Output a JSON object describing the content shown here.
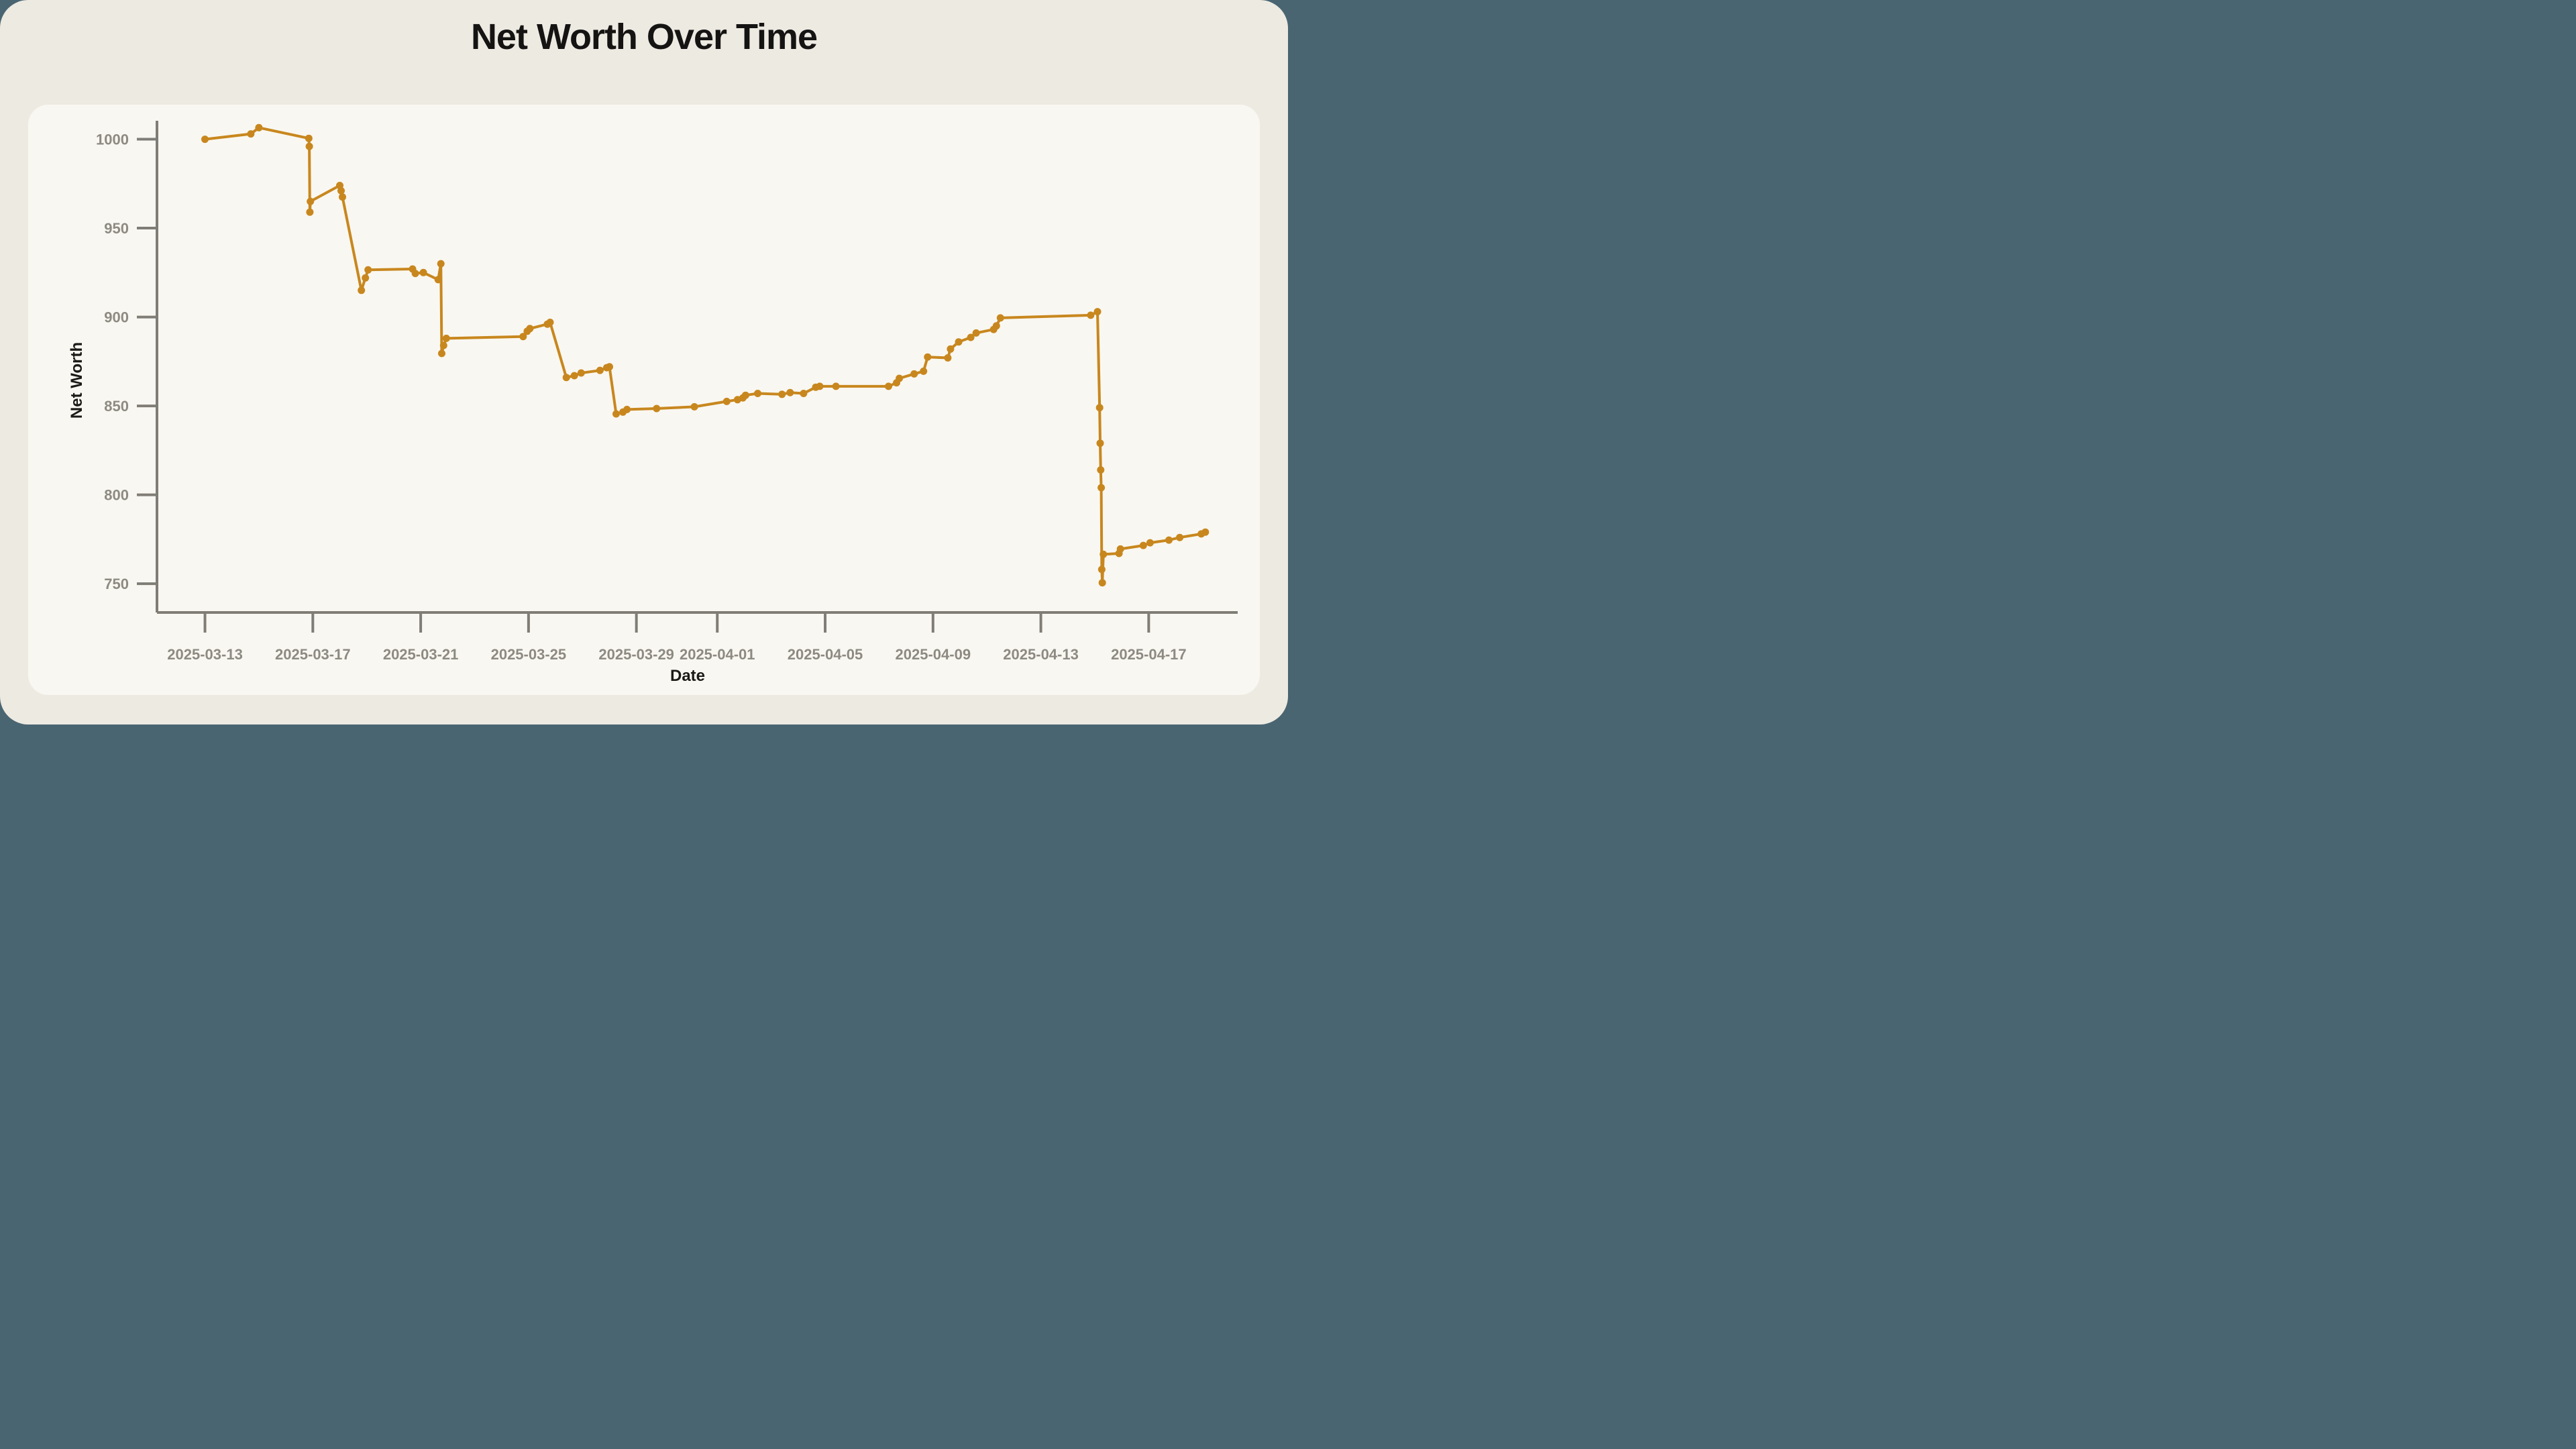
{
  "page": {
    "title": "Net Worth Over Time",
    "background_color": "#4a6572",
    "card_color": "#edeae2",
    "panel_color": "#f9f7f1"
  },
  "chart_data": {
    "type": "line",
    "title": "Net Worth Over Time",
    "xlabel": "Date",
    "ylabel": "Net Worth",
    "series_color": "#c8871e",
    "axis_color": "#7f7d76",
    "tick_label_color": "#8d8a82",
    "grid": false,
    "legend": "none",
    "marker": "circle",
    "x_base_date": "2025-03-13",
    "x_unit": "days_since_2025-03-13",
    "x_range_days": [
      -1.78,
      38.3
    ],
    "y_range": [
      733.8,
      1010.4
    ],
    "y_ticks": [
      1000,
      950,
      900,
      850,
      800,
      750
    ],
    "x_ticks": [
      {
        "t": 0,
        "label": "2025-03-13"
      },
      {
        "t": 4,
        "label": "2025-03-17"
      },
      {
        "t": 8,
        "label": "2025-03-21"
      },
      {
        "t": 12,
        "label": "2025-03-25"
      },
      {
        "t": 16,
        "label": "2025-03-29"
      },
      {
        "t": 19,
        "label": "2025-04-01"
      },
      {
        "t": 23,
        "label": "2025-04-05"
      },
      {
        "t": 27,
        "label": "2025-04-09"
      },
      {
        "t": 31,
        "label": "2025-04-13"
      },
      {
        "t": 35,
        "label": "2025-04-17"
      }
    ],
    "points": [
      {
        "t": 0.0,
        "v": 1000
      },
      {
        "t": 1.7,
        "v": 1003
      },
      {
        "t": 2.0,
        "v": 1006.5
      },
      {
        "t": 3.85,
        "v": 1000.5
      },
      {
        "t": 3.87,
        "v": 996
      },
      {
        "t": 3.89,
        "v": 959
      },
      {
        "t": 3.91,
        "v": 965
      },
      {
        "t": 5.0,
        "v": 974
      },
      {
        "t": 5.05,
        "v": 971
      },
      {
        "t": 5.1,
        "v": 967.5
      },
      {
        "t": 5.8,
        "v": 915
      },
      {
        "t": 5.95,
        "v": 922
      },
      {
        "t": 6.05,
        "v": 926.5
      },
      {
        "t": 7.7,
        "v": 927
      },
      {
        "t": 7.8,
        "v": 924.5
      },
      {
        "t": 8.1,
        "v": 925
      },
      {
        "t": 8.65,
        "v": 921
      },
      {
        "t": 8.75,
        "v": 930
      },
      {
        "t": 8.78,
        "v": 879.5
      },
      {
        "t": 8.85,
        "v": 884
      },
      {
        "t": 8.95,
        "v": 888
      },
      {
        "t": 11.8,
        "v": 889
      },
      {
        "t": 11.95,
        "v": 892
      },
      {
        "t": 12.05,
        "v": 893.5
      },
      {
        "t": 12.7,
        "v": 896
      },
      {
        "t": 12.8,
        "v": 897
      },
      {
        "t": 13.4,
        "v": 866
      },
      {
        "t": 13.7,
        "v": 867
      },
      {
        "t": 13.95,
        "v": 868.5
      },
      {
        "t": 14.65,
        "v": 870
      },
      {
        "t": 14.9,
        "v": 871.5
      },
      {
        "t": 15.0,
        "v": 872
      },
      {
        "t": 15.25,
        "v": 845.5
      },
      {
        "t": 15.5,
        "v": 846.5
      },
      {
        "t": 15.65,
        "v": 848
      },
      {
        "t": 16.75,
        "v": 848.5
      },
      {
        "t": 18.15,
        "v": 849.5
      },
      {
        "t": 19.35,
        "v": 852.5
      },
      {
        "t": 19.75,
        "v": 853.5
      },
      {
        "t": 19.95,
        "v": 854.5
      },
      {
        "t": 20.05,
        "v": 856
      },
      {
        "t": 20.5,
        "v": 857
      },
      {
        "t": 21.4,
        "v": 856.5
      },
      {
        "t": 21.7,
        "v": 857.5
      },
      {
        "t": 22.2,
        "v": 857
      },
      {
        "t": 22.65,
        "v": 860.5
      },
      {
        "t": 22.8,
        "v": 861
      },
      {
        "t": 23.4,
        "v": 861
      },
      {
        "t": 25.35,
        "v": 861
      },
      {
        "t": 25.65,
        "v": 863
      },
      {
        "t": 25.75,
        "v": 865.5
      },
      {
        "t": 26.3,
        "v": 868
      },
      {
        "t": 26.65,
        "v": 869.5
      },
      {
        "t": 26.8,
        "v": 877.5
      },
      {
        "t": 27.55,
        "v": 877
      },
      {
        "t": 27.65,
        "v": 882
      },
      {
        "t": 27.95,
        "v": 886
      },
      {
        "t": 28.4,
        "v": 888.5
      },
      {
        "t": 28.6,
        "v": 891
      },
      {
        "t": 29.25,
        "v": 893
      },
      {
        "t": 29.35,
        "v": 895
      },
      {
        "t": 29.5,
        "v": 899.5
      },
      {
        "t": 32.85,
        "v": 901
      },
      {
        "t": 33.1,
        "v": 903
      },
      {
        "t": 33.18,
        "v": 849
      },
      {
        "t": 33.2,
        "v": 829
      },
      {
        "t": 33.22,
        "v": 814
      },
      {
        "t": 33.24,
        "v": 804
      },
      {
        "t": 33.26,
        "v": 758
      },
      {
        "t": 33.28,
        "v": 750.5
      },
      {
        "t": 33.32,
        "v": 766.5
      },
      {
        "t": 33.9,
        "v": 767
      },
      {
        "t": 33.95,
        "v": 769.5
      },
      {
        "t": 34.8,
        "v": 771.5
      },
      {
        "t": 35.05,
        "v": 773
      },
      {
        "t": 35.75,
        "v": 774.5
      },
      {
        "t": 36.15,
        "v": 776
      },
      {
        "t": 36.95,
        "v": 778
      },
      {
        "t": 37.1,
        "v": 779
      }
    ]
  }
}
